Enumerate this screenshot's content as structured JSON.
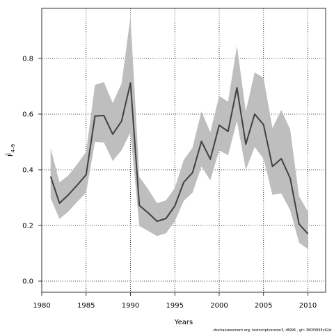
{
  "chart_data": {
    "type": "line",
    "title": "",
    "xlabel": "Years",
    "ylabel": "F̄",
    "ylabel_subscript": "4–9",
    "xlim": [
      1980,
      2012
    ],
    "ylim": [
      -0.04,
      0.98
    ],
    "x_ticks": [
      1980,
      1985,
      1990,
      1995,
      2000,
      2005,
      2010
    ],
    "y_ticks": [
      0.0,
      0.2,
      0.4,
      0.6,
      0.8
    ],
    "y_tick_labels": [
      "0.0",
      "0.2",
      "0.4",
      "0.6",
      "0.8"
    ],
    "grid": true,
    "colors": {
      "band": "#bebebe",
      "line": "#404040",
      "grid": "#000000"
    },
    "x": [
      1981,
      1982,
      1983,
      1984,
      1985,
      1986,
      1987,
      1988,
      1989,
      1990,
      1991,
      1992,
      1993,
      1994,
      1995,
      1996,
      1997,
      1998,
      1999,
      2000,
      2001,
      2002,
      2003,
      2004,
      2005,
      2006,
      2007,
      2008,
      2009,
      2010
    ],
    "series": [
      {
        "values": [
          0.376,
          0.28,
          0.31,
          0.345,
          0.382,
          0.593,
          0.595,
          0.528,
          0.575,
          0.712,
          0.272,
          0.245,
          0.215,
          0.225,
          0.27,
          0.355,
          0.39,
          0.502,
          0.438,
          0.56,
          0.538,
          0.695,
          0.492,
          0.6,
          0.562,
          0.412,
          0.44,
          0.37,
          0.205,
          0.17
        ]
      }
    ],
    "band": {
      "upper": [
        0.478,
        0.355,
        0.38,
        0.42,
        0.465,
        0.705,
        0.715,
        0.64,
        0.71,
        0.95,
        0.375,
        0.33,
        0.28,
        0.29,
        0.335,
        0.435,
        0.48,
        0.61,
        0.535,
        0.665,
        0.645,
        0.845,
        0.61,
        0.75,
        0.73,
        0.55,
        0.615,
        0.545,
        0.305,
        0.25
      ],
      "lower": [
        0.298,
        0.223,
        0.25,
        0.285,
        0.318,
        0.5,
        0.498,
        0.432,
        0.47,
        0.535,
        0.198,
        0.18,
        0.162,
        0.172,
        0.215,
        0.288,
        0.318,
        0.412,
        0.362,
        0.47,
        0.452,
        0.575,
        0.4,
        0.482,
        0.44,
        0.31,
        0.315,
        0.255,
        0.138,
        0.115
      ]
    }
  },
  "footnote": "stockassessment.org, testscriptversion3, r8996 , git: 360f3995c92d"
}
